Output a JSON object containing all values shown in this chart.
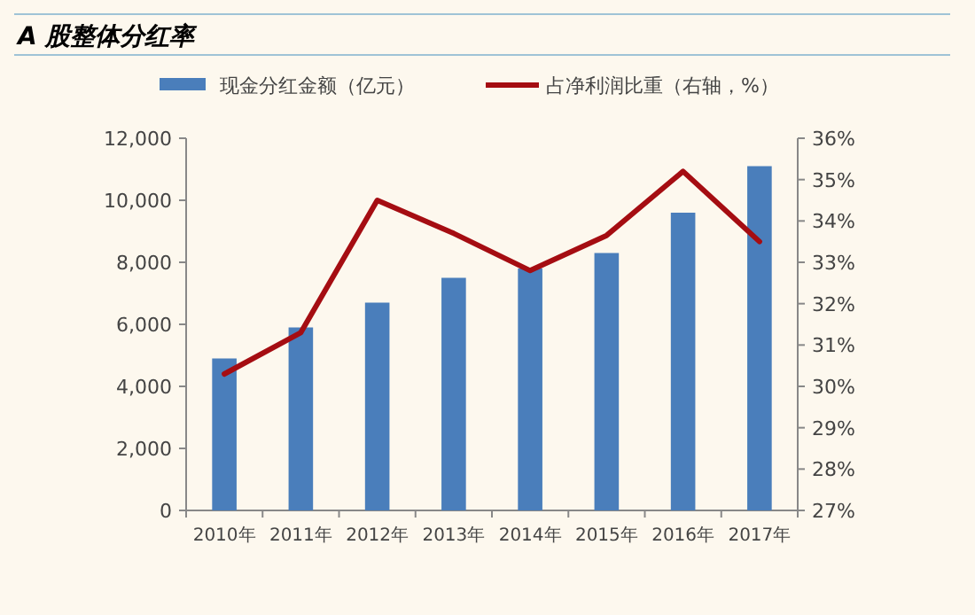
{
  "chart_data": {
    "type": "bar",
    "title": "A 股整体分红率",
    "categories": [
      "2010年",
      "2011年",
      "2012年",
      "2013年",
      "2014年",
      "2015年",
      "2016年",
      "2017年"
    ],
    "series": [
      {
        "name": "现金分红金额（亿元）",
        "color": "#4a7ebb",
        "values": [
          4900,
          5900,
          6700,
          7500,
          7800,
          8300,
          9600,
          11100
        ]
      },
      {
        "name": "占净利润比重（右轴，%）",
        "type": "line",
        "axis": "y2",
        "color": "#a50d12",
        "values": [
          30.3,
          31.3,
          34.5,
          33.7,
          32.8,
          33.65,
          35.2,
          33.5
        ]
      }
    ],
    "ylim": [
      0,
      12000
    ],
    "yticks": [
      0,
      {
        "value": 2000,
        "label": "2,000"
      },
      {
        "value": 4000,
        "label": "4,000"
      },
      {
        "value": 6000,
        "label": "6,000"
      },
      {
        "value": 8000,
        "label": "8,000"
      },
      {
        "value": 10000,
        "label": "10,000"
      },
      {
        "value": 12000,
        "label": "12,000"
      }
    ],
    "y2lim": [
      27,
      36
    ],
    "y2ticks": [
      {
        "value": 27,
        "label": "27%"
      },
      {
        "value": 28,
        "label": "28%"
      },
      {
        "value": 29,
        "label": "29%"
      },
      {
        "value": 30,
        "label": "30%"
      },
      {
        "value": 31,
        "label": "31%"
      },
      {
        "value": 32,
        "label": "32%"
      },
      {
        "value": 33,
        "label": "33%"
      },
      {
        "value": 34,
        "label": "34%"
      },
      {
        "value": 35,
        "label": "35%"
      },
      {
        "value": 36,
        "label": "36%"
      }
    ],
    "legend": "top"
  }
}
